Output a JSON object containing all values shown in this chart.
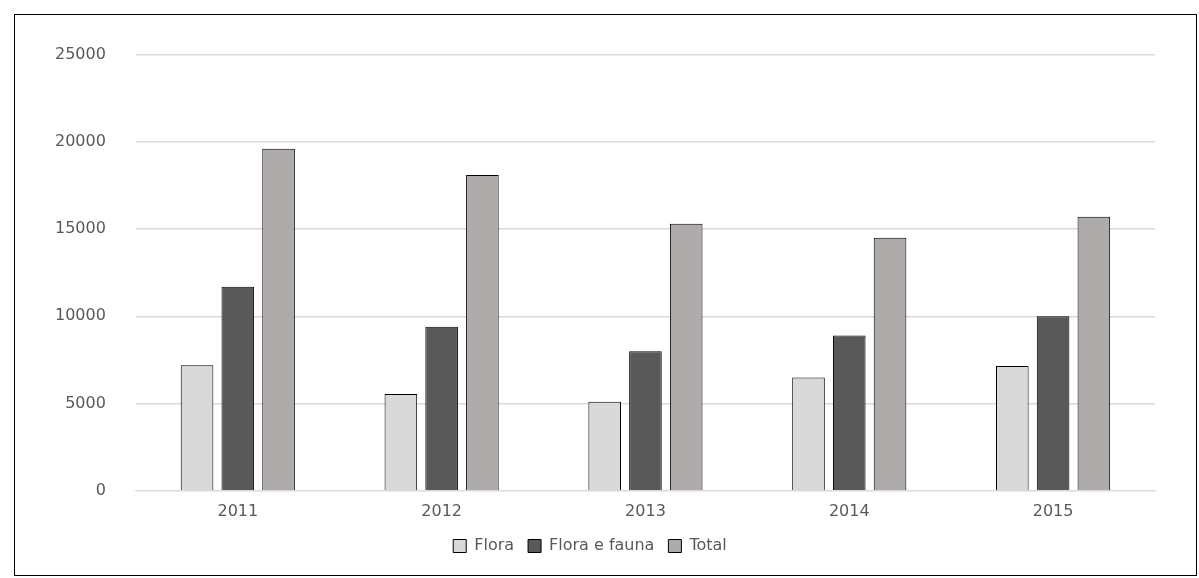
{
  "chart_data": {
    "type": "bar",
    "categories": [
      "2011",
      "2012",
      "2013",
      "2014",
      "2015"
    ],
    "series": [
      {
        "name": "Flora",
        "color": "#d9d9d9",
        "values": [
          7200,
          5550,
          5100,
          6500,
          7150
        ]
      },
      {
        "name": "Flora e fauna",
        "color": "#595959",
        "values": [
          11700,
          9400,
          8000,
          8900,
          10000
        ]
      },
      {
        "name": "Total",
        "color": "#afabab",
        "values": [
          19600,
          18100,
          15300,
          14500,
          15700
        ]
      }
    ],
    "ylim": [
      0,
      25000
    ],
    "yticks": [
      0,
      5000,
      10000,
      15000,
      20000,
      25000
    ],
    "grid": "y",
    "legend": "bottom"
  }
}
